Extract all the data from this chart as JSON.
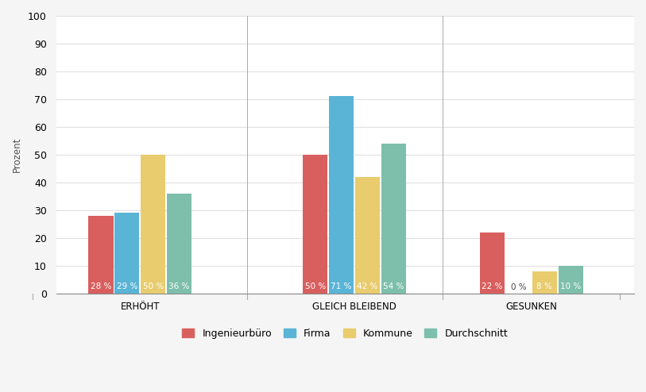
{
  "groups": [
    "ERHÖHT",
    "GLEICH BLEIBEND",
    "GESUNKEN"
  ],
  "series": {
    "Ingenieurbüro": [
      28,
      50,
      22
    ],
    "Firma": [
      29,
      71,
      0
    ],
    "Kommune": [
      50,
      42,
      8
    ],
    "Durchschnitt": [
      36,
      54,
      10
    ]
  },
  "colors": {
    "Ingenieurbüro": "#d95f5f",
    "Firma": "#5ab4d6",
    "Kommune": "#e8cc6e",
    "Durchschnitt": "#7dbfaa"
  },
  "ylabel": "Prozent",
  "ylim": [
    0,
    100
  ],
  "yticks": [
    0,
    10,
    20,
    30,
    40,
    50,
    60,
    70,
    80,
    90,
    100
  ],
  "bar_width": 0.14,
  "background_color": "#f5f5f5",
  "plot_bg_color": "#ffffff",
  "grid_color": "#e0e0e0",
  "label_fontsize": 7.5,
  "axis_label_fontsize": 8.5,
  "legend_fontsize": 9,
  "tick_fontsize": 9,
  "group_centers": [
    0.35,
    1.5,
    2.45
  ],
  "xlim": [
    -0.1,
    3.0
  ]
}
